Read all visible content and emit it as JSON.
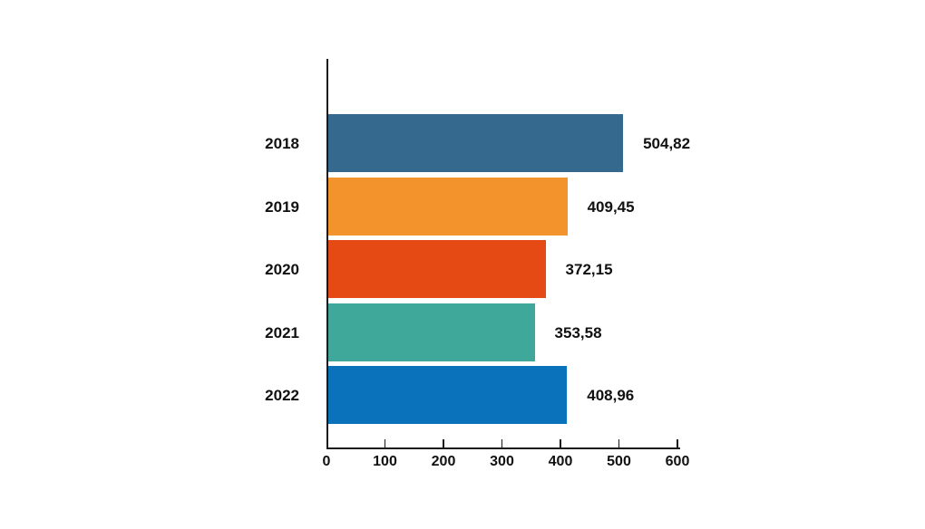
{
  "chart_data": {
    "type": "bar",
    "orientation": "horizontal",
    "title": "",
    "xlabel": "",
    "ylabel": "",
    "categories": [
      "2018",
      "2019",
      "2020",
      "2021",
      "2022"
    ],
    "values": [
      504.82,
      409.45,
      372.15,
      353.58,
      408.96
    ],
    "value_labels": [
      "504,82",
      "409,45",
      "372,15",
      "353,58",
      "408,96"
    ],
    "bar_colors": [
      "#35698D",
      "#F2932B",
      "#E54A14",
      "#3FA89B",
      "#0A72BA"
    ],
    "xlim": [
      0,
      600
    ],
    "xticks": [
      0,
      100,
      200,
      300,
      400,
      500,
      600
    ],
    "xtick_labels": [
      "0",
      "100",
      "200",
      "300",
      "400",
      "500",
      "600"
    ],
    "grid": false,
    "legend": false,
    "axis_color": "#1a1a1a",
    "text_color": "#111111",
    "background_color": "#ffffff"
  }
}
